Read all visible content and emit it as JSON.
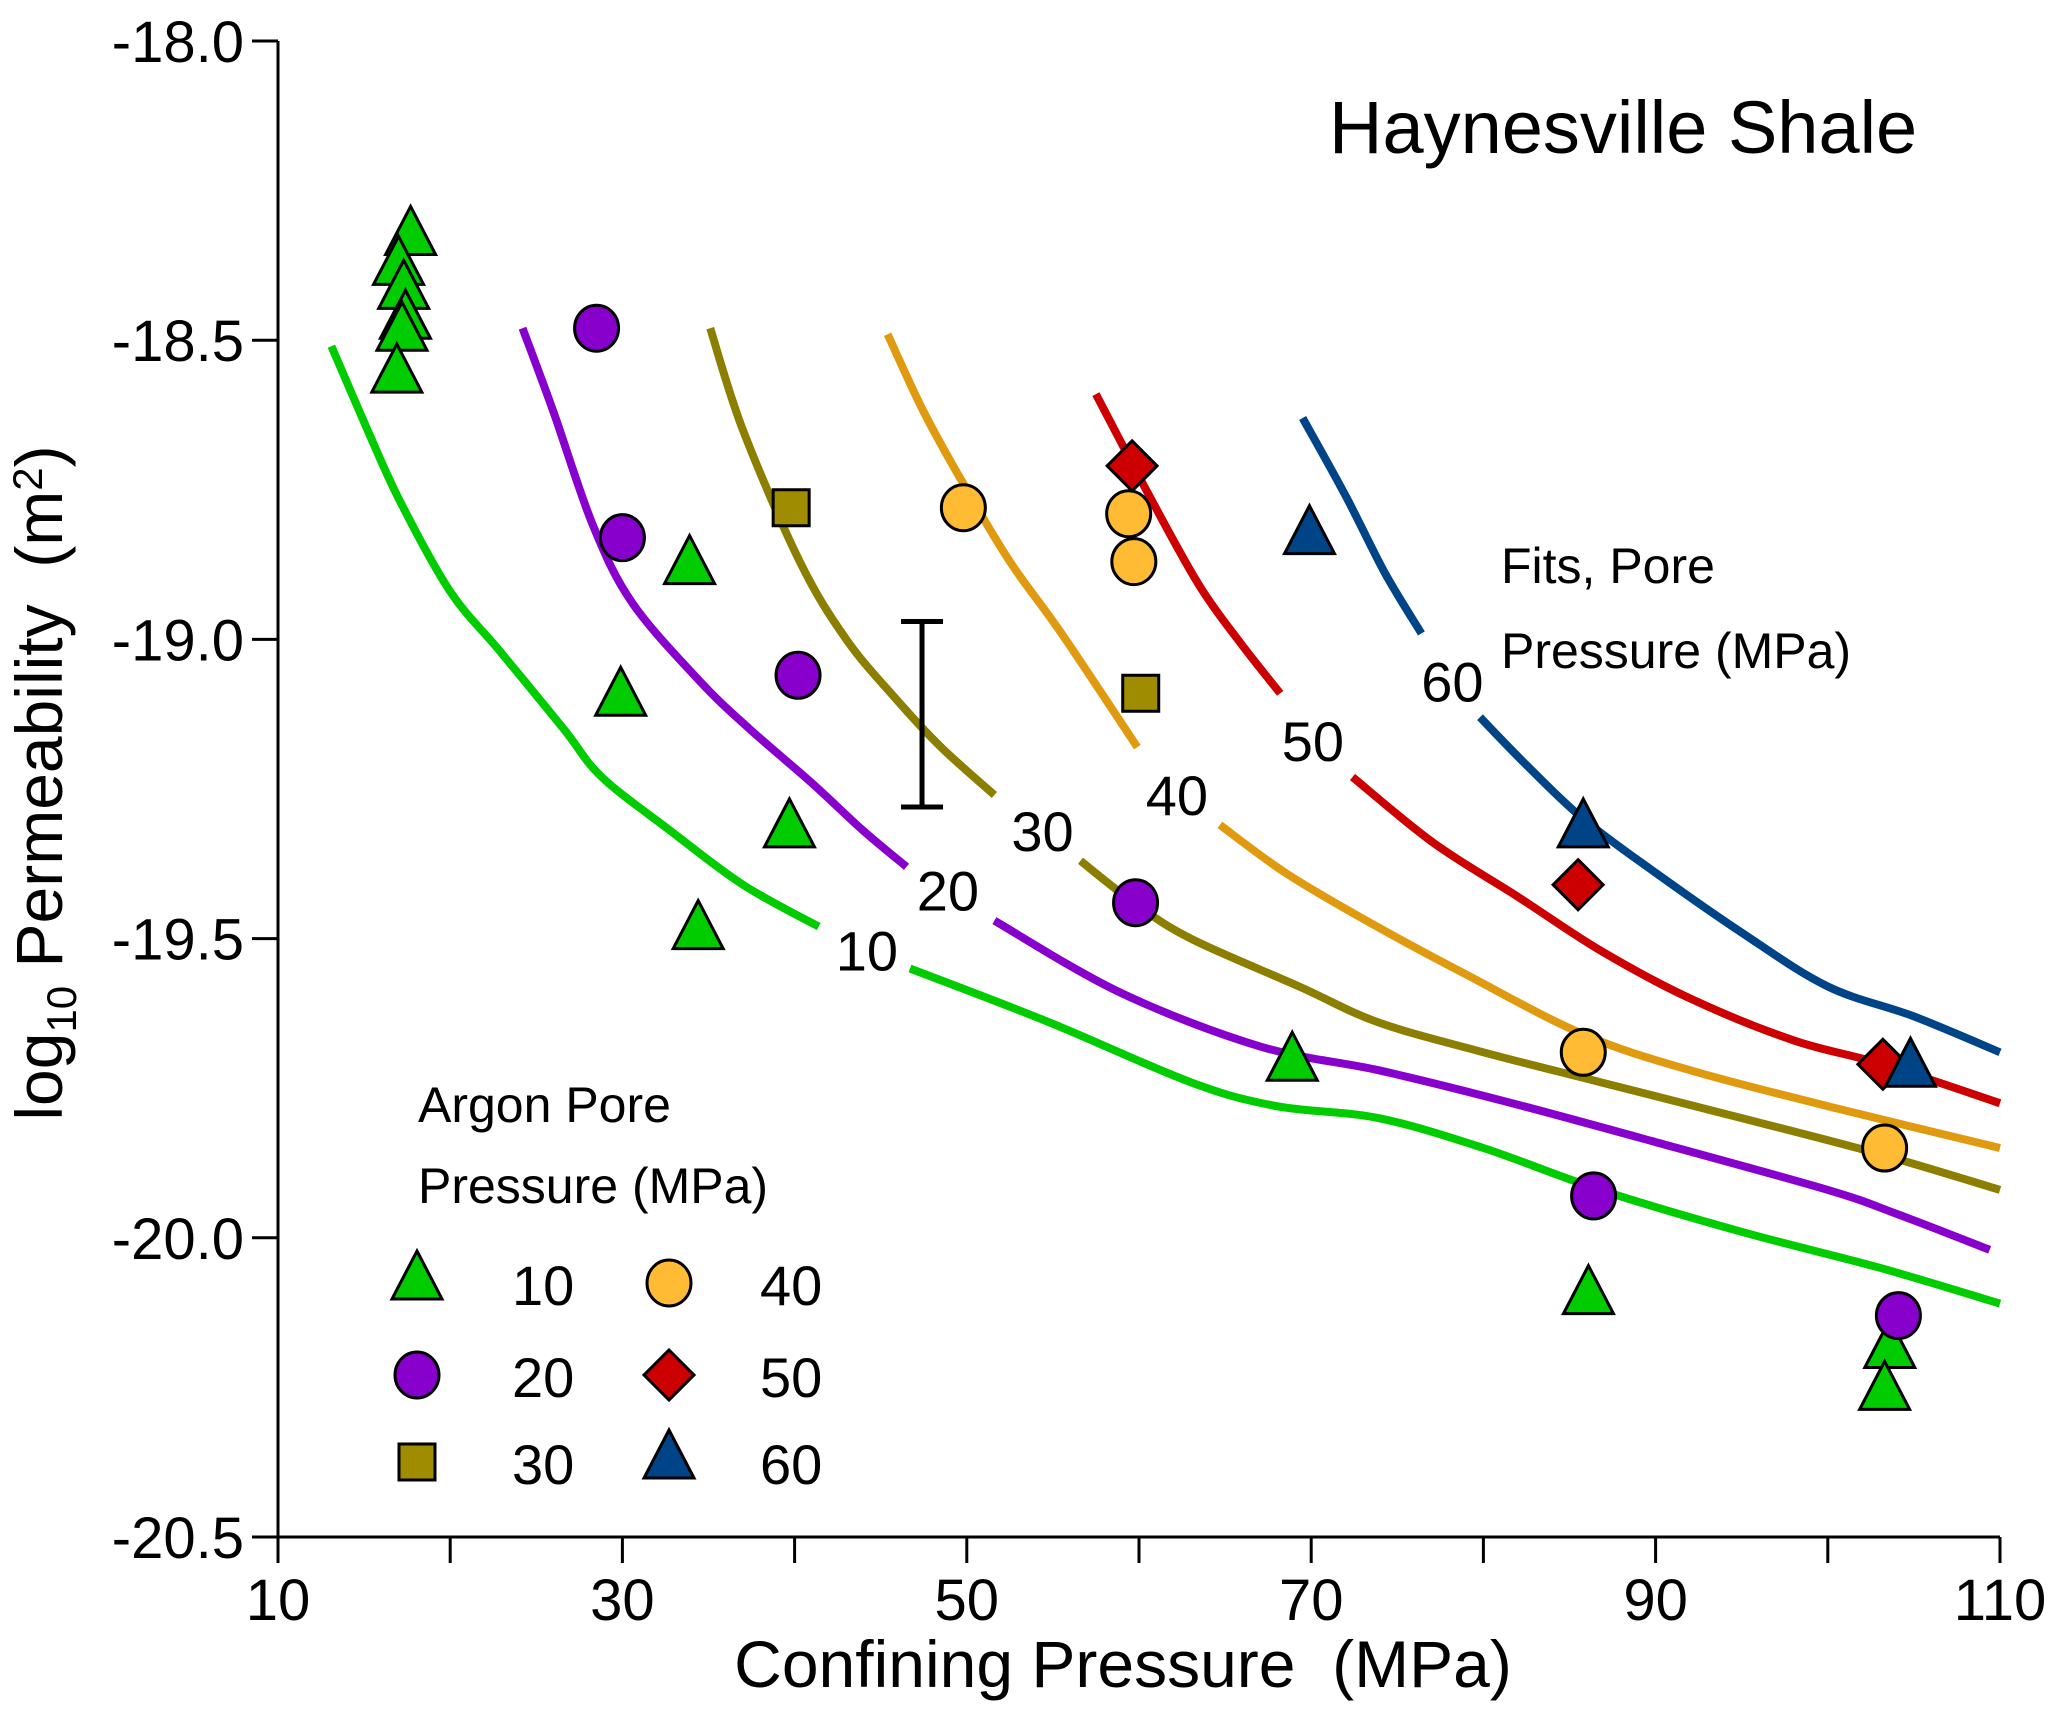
{
  "chart_data": {
    "type": "scatter",
    "title": "Haynesville Shale",
    "xlabel": "Confining Pressure  (MPa)",
    "ylabel": {
      "prefix": "log",
      "subscript": "10",
      "main": " Permeability  (m",
      "superscript": "2",
      "suffix": ")"
    },
    "xlim": [
      10,
      110
    ],
    "ylim": [
      -20.5,
      -18.0
    ],
    "xticks": [
      10,
      20,
      30,
      40,
      50,
      60,
      70,
      80,
      90,
      100,
      110
    ],
    "xtick_labels": [
      "10",
      "",
      "30",
      "",
      "50",
      "",
      "70",
      "",
      "90",
      "",
      "110"
    ],
    "yticks": [
      -18.0,
      -18.5,
      -19.0,
      -19.5,
      -20.0,
      -20.5
    ],
    "ytick_labels": [
      "-18.0",
      "-18.5",
      "-19.0",
      "-19.5",
      "-20.0",
      "-20.5"
    ],
    "grid": false,
    "legend": {
      "title_line1": "Argon Pore",
      "title_line2": "Pressure (MPa)",
      "placement": "bottom-left",
      "entries": [
        {
          "label": "10",
          "series": "10"
        },
        {
          "label": "20",
          "series": "20"
        },
        {
          "label": "30",
          "series": "30"
        },
        {
          "label": "40",
          "series": "40"
        },
        {
          "label": "50",
          "series": "50"
        },
        {
          "label": "60",
          "series": "60"
        }
      ]
    },
    "fits_annotation": {
      "line1": "Fits, Pore",
      "line2": "Pressure (MPa)"
    },
    "error_bar": {
      "x": 47.4,
      "y_top": -18.97,
      "y_bottom": -19.28
    },
    "series": [
      {
        "name": "10",
        "marker": "triangle",
        "color": "#00CC00",
        "points": [
          [
            17.7,
            -18.33
          ],
          [
            17.0,
            -18.38
          ],
          [
            17.3,
            -18.42
          ],
          [
            17.4,
            -18.47
          ],
          [
            17.2,
            -18.49
          ],
          [
            16.9,
            -18.56
          ],
          [
            33.9,
            -18.88
          ],
          [
            29.9,
            -19.1
          ],
          [
            39.7,
            -19.32
          ],
          [
            34.4,
            -19.49
          ],
          [
            68.9,
            -19.71
          ],
          [
            86.1,
            -20.1
          ],
          [
            103.6,
            -20.19
          ],
          [
            103.3,
            -20.26
          ]
        ]
      },
      {
        "name": "20",
        "marker": "circle",
        "color": "#8800CC",
        "points": [
          [
            28.5,
            -18.48
          ],
          [
            30.0,
            -18.83
          ],
          [
            40.2,
            -19.06
          ],
          [
            59.8,
            -19.44
          ],
          [
            86.4,
            -19.93
          ],
          [
            104.1,
            -20.13
          ]
        ]
      },
      {
        "name": "30",
        "marker": "square",
        "color": "#A08C00",
        "points": [
          [
            39.8,
            -18.78
          ],
          [
            60.1,
            -19.09
          ]
        ]
      },
      {
        "name": "40",
        "marker": "circle",
        "color": "#FFBB33",
        "points": [
          [
            49.8,
            -18.78
          ],
          [
            59.4,
            -18.79
          ],
          [
            59.7,
            -18.87
          ],
          [
            85.8,
            -19.69
          ],
          [
            103.3,
            -19.85
          ]
        ]
      },
      {
        "name": "50",
        "marker": "diamond",
        "color": "#CC0000",
        "points": [
          [
            59.6,
            -18.71
          ],
          [
            85.5,
            -19.41
          ],
          [
            103.2,
            -19.71
          ]
        ]
      },
      {
        "name": "60",
        "marker": "triangle",
        "color": "#004488",
        "points": [
          [
            69.9,
            -18.83
          ],
          [
            85.8,
            -19.32
          ],
          [
            104.8,
            -19.72
          ]
        ]
      }
    ],
    "fits": [
      {
        "name": "10",
        "label": "10",
        "color": "#00CC00",
        "label_at": [
          44.2,
          -19.52
        ],
        "segments": [
          [
            [
              13.1,
              -18.51
            ],
            [
              15.2,
              -18.65
            ],
            [
              17.1,
              -18.77
            ],
            [
              20.0,
              -18.92
            ],
            [
              22.9,
              -19.02
            ],
            [
              26.6,
              -19.15
            ],
            [
              28.8,
              -19.23
            ],
            [
              32.8,
              -19.32
            ],
            [
              37.0,
              -19.41
            ],
            [
              41.4,
              -19.48
            ]
          ],
          [
            [
              46.7,
              -19.55
            ],
            [
              54.8,
              -19.64
            ],
            [
              63.0,
              -19.74
            ],
            [
              68.0,
              -19.78
            ],
            [
              73.9,
              -19.8
            ],
            [
              80.0,
              -19.85
            ],
            [
              86.8,
              -19.92
            ],
            [
              95.0,
              -19.99
            ],
            [
              103.0,
              -20.05
            ],
            [
              110.0,
              -20.11
            ]
          ]
        ]
      },
      {
        "name": "20",
        "label": "20",
        "color": "#8800CC",
        "label_at": [
          48.9,
          -19.42
        ],
        "segments": [
          [
            [
              24.2,
              -18.48
            ],
            [
              26.0,
              -18.62
            ],
            [
              28.3,
              -18.81
            ],
            [
              30.6,
              -18.94
            ],
            [
              34.5,
              -19.07
            ],
            [
              37.4,
              -19.15
            ],
            [
              41.0,
              -19.24
            ],
            [
              44.0,
              -19.32
            ],
            [
              46.5,
              -19.38
            ]
          ],
          [
            [
              51.6,
              -19.47
            ],
            [
              58.9,
              -19.59
            ],
            [
              67.0,
              -19.68
            ],
            [
              73.9,
              -19.72
            ],
            [
              81.0,
              -19.77
            ],
            [
              90.0,
              -19.84
            ],
            [
              100.0,
              -19.92
            ],
            [
              104.0,
              -19.96
            ],
            [
              109.4,
              -20.02
            ]
          ]
        ]
      },
      {
        "name": "30",
        "label": "30",
        "color": "#8B7E00",
        "label_at": [
          54.4,
          -19.32
        ],
        "segments": [
          [
            [
              35.1,
              -18.48
            ],
            [
              37.0,
              -18.65
            ],
            [
              40.3,
              -18.87
            ],
            [
              43.0,
              -19.0
            ],
            [
              45.9,
              -19.1
            ],
            [
              48.5,
              -19.18
            ],
            [
              51.6,
              -19.26
            ]
          ],
          [
            [
              56.6,
              -19.37
            ],
            [
              59.7,
              -19.44
            ],
            [
              63.0,
              -19.5
            ],
            [
              69.3,
              -19.58
            ],
            [
              73.9,
              -19.64
            ],
            [
              80.0,
              -19.69
            ],
            [
              86.8,
              -19.74
            ],
            [
              95.0,
              -19.8
            ],
            [
              103.0,
              -19.86
            ],
            [
              110.0,
              -19.92
            ]
          ]
        ]
      },
      {
        "name": "40",
        "label": "40",
        "color": "#E09A10",
        "label_at": [
          62.2,
          -19.26
        ],
        "segments": [
          [
            [
              45.4,
              -18.49
            ],
            [
              47.5,
              -18.62
            ],
            [
              49.8,
              -18.74
            ],
            [
              52.5,
              -18.87
            ],
            [
              55.5,
              -18.99
            ],
            [
              59.9,
              -19.18
            ]
          ],
          [
            [
              64.7,
              -19.31
            ],
            [
              68.5,
              -19.39
            ],
            [
              73.2,
              -19.47
            ],
            [
              79.0,
              -19.56
            ],
            [
              85.8,
              -19.66
            ],
            [
              92.0,
              -19.72
            ],
            [
              100.0,
              -19.78
            ],
            [
              110.0,
              -19.85
            ]
          ]
        ]
      },
      {
        "name": "50",
        "label": "50",
        "color": "#CC0000",
        "label_at": [
          70.1,
          -19.17
        ],
        "segments": [
          [
            [
              57.5,
              -18.59
            ],
            [
              60.6,
              -18.76
            ],
            [
              63.5,
              -18.91
            ],
            [
              66.0,
              -19.01
            ],
            [
              68.2,
              -19.09
            ]
          ],
          [
            [
              72.4,
              -19.23
            ],
            [
              77.1,
              -19.34
            ],
            [
              82.0,
              -19.43
            ],
            [
              86.8,
              -19.52
            ],
            [
              92.0,
              -19.6
            ],
            [
              98.0,
              -19.67
            ],
            [
              103.2,
              -19.71
            ],
            [
              110.0,
              -19.775
            ]
          ]
        ]
      },
      {
        "name": "60",
        "label": "60",
        "color": "#004488",
        "label_at": [
          78.2,
          -19.07
        ],
        "segments": [
          [
            [
              69.5,
              -18.63
            ],
            [
              72.0,
              -18.76
            ],
            [
              74.3,
              -18.89
            ],
            [
              76.4,
              -18.99
            ]
          ],
          [
            [
              79.8,
              -19.13
            ],
            [
              82.5,
              -19.21
            ],
            [
              85.8,
              -19.3
            ],
            [
              90.0,
              -19.39
            ],
            [
              95.0,
              -19.49
            ],
            [
              100.0,
              -19.58
            ],
            [
              105.0,
              -19.63
            ],
            [
              110.0,
              -19.69
            ]
          ]
        ]
      }
    ]
  }
}
